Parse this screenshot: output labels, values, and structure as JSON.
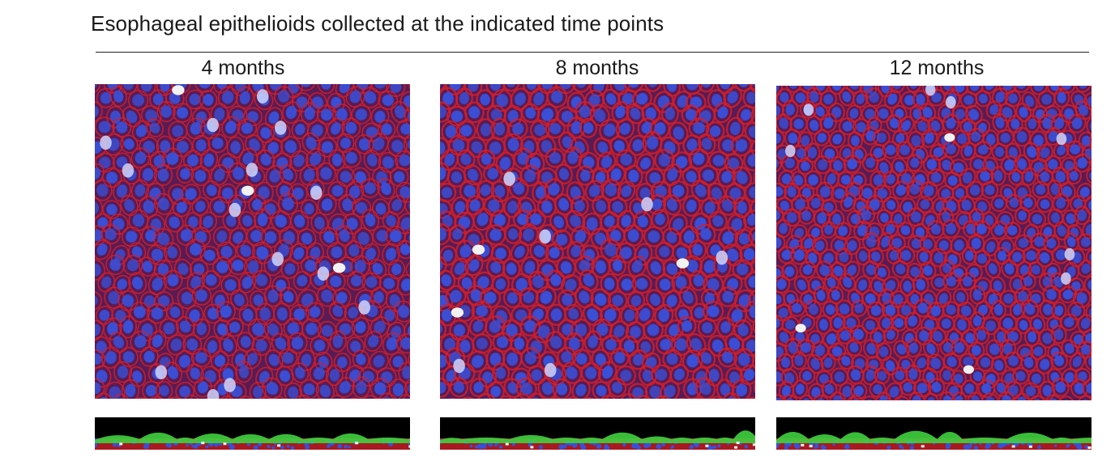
{
  "figure": {
    "title": "Esophageal epithelioids collected at the indicated time points"
  },
  "panels": [
    {
      "label": "4 months"
    },
    {
      "label": "8 months"
    },
    {
      "label": "12 months"
    }
  ],
  "colors": {
    "membrane_red": "#d21f2a",
    "nuclei_blue": "#3a4fd8",
    "background_navy": "#2a1a66",
    "section_green": "#3fd23f",
    "bright_white": "#f2f2f2"
  }
}
